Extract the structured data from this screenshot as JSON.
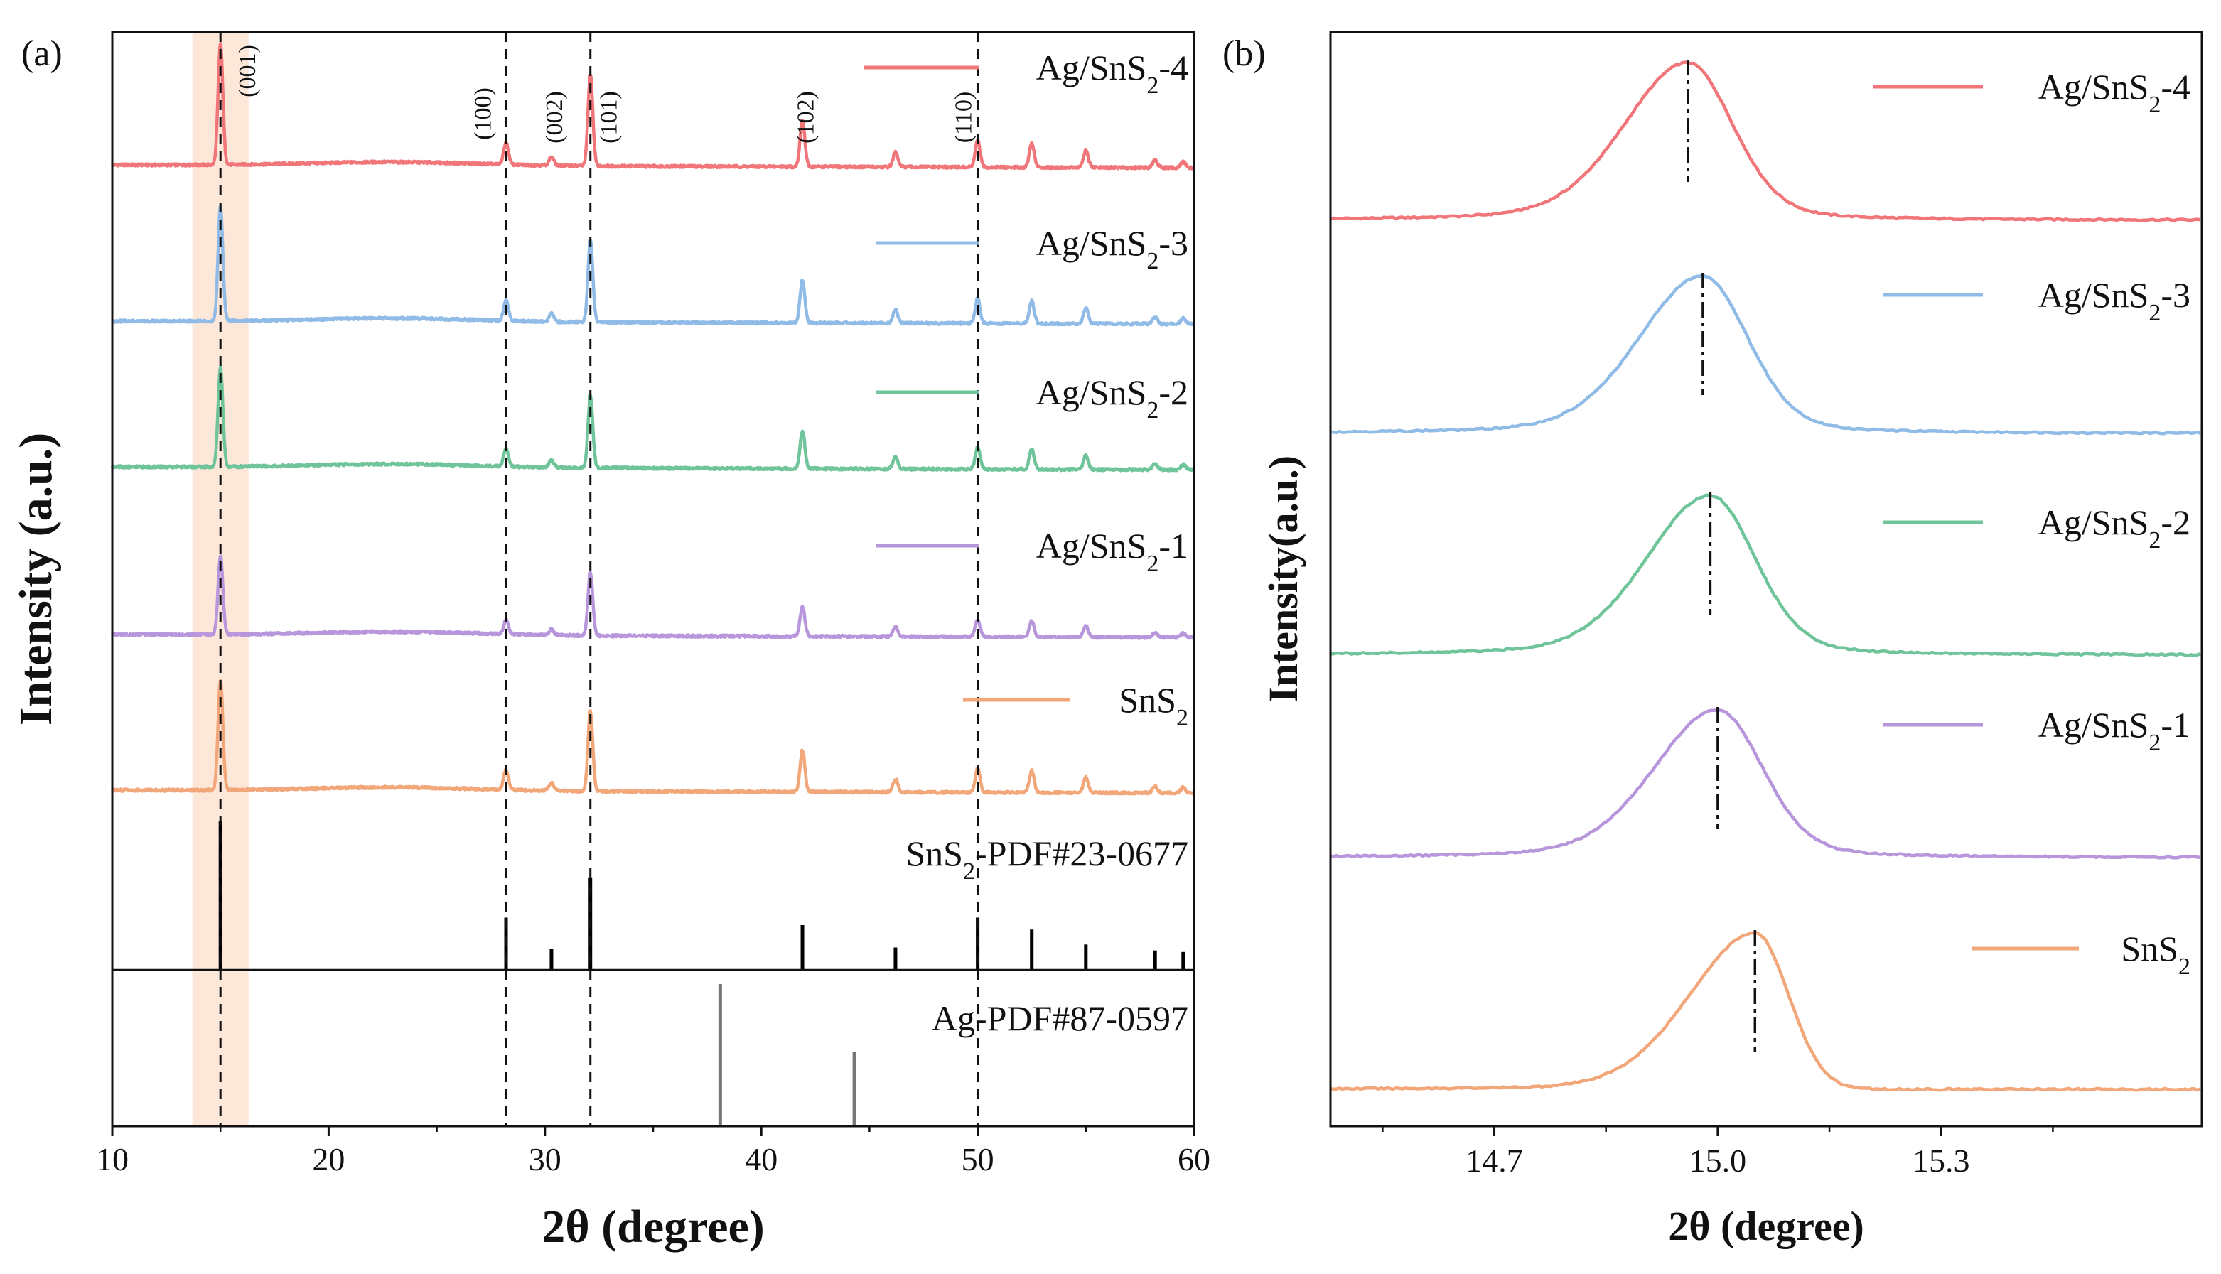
{
  "chart_data": [
    {
      "panel": "(a)",
      "type": "line",
      "xlabel": "2θ (degree)",
      "ylabel": "Intensity (a.u.)",
      "xlim": [
        10,
        60
      ],
      "xticks": [
        10,
        20,
        30,
        40,
        50,
        60
      ],
      "highlight_band": [
        13.7,
        16.3
      ],
      "dashed_guides": [
        15.0,
        28.2,
        32.1,
        50.0
      ],
      "plane_labels": [
        {
          "text": "(001)",
          "x": 16.6
        },
        {
          "text": "(100)",
          "x": 27.5
        },
        {
          "text": "(002)",
          "x": 30.8
        },
        {
          "text": "(101)",
          "x": 33.3
        },
        {
          "text": "(102)",
          "x": 42.4
        },
        {
          "text": "(110)",
          "x": 49.7
        }
      ],
      "peaks": [
        {
          "x": 15.0,
          "h": 1.0
        },
        {
          "x": 28.2,
          "h": 0.18
        },
        {
          "x": 30.3,
          "h": 0.07
        },
        {
          "x": 32.1,
          "h": 0.72
        },
        {
          "x": 41.9,
          "h": 0.38
        },
        {
          "x": 46.2,
          "h": 0.12
        },
        {
          "x": 50.0,
          "h": 0.22
        },
        {
          "x": 52.5,
          "h": 0.2
        },
        {
          "x": 55.0,
          "h": 0.14
        },
        {
          "x": 58.2,
          "h": 0.06
        },
        {
          "x": 59.5,
          "h": 0.05
        }
      ],
      "series": [
        {
          "name": "Ag/SnS₂-4",
          "name_main": "Ag/SnS",
          "name_sub": "2",
          "name_tail": "-4",
          "color": "#f0767a"
        },
        {
          "name": "Ag/SnS₂-3",
          "name_main": "Ag/SnS",
          "name_sub": "2",
          "name_tail": "-3",
          "color": "#8fbbe6"
        },
        {
          "name": "Ag/SnS₂-2",
          "name_main": "Ag/SnS",
          "name_sub": "2",
          "name_tail": "-2",
          "color": "#6fc49a"
        },
        {
          "name": "Ag/SnS₂-1",
          "name_main": "Ag/SnS",
          "name_sub": "2",
          "name_tail": "-1",
          "color": "#b896dc"
        },
        {
          "name": "SnS₂",
          "name_main": "SnS",
          "name_sub": "2",
          "name_tail": "",
          "color": "#f2a77a"
        }
      ],
      "reference_patterns": [
        {
          "label": "SnS₂-PDF#23-0677",
          "label_main": "SnS",
          "label_sub": "2",
          "label_tail": "-PDF#23-0677",
          "color": "#000000",
          "lines": [
            {
              "x": 15.0,
              "h": 1.0
            },
            {
              "x": 28.2,
              "h": 0.35
            },
            {
              "x": 30.3,
              "h": 0.14
            },
            {
              "x": 32.1,
              "h": 0.62
            },
            {
              "x": 41.9,
              "h": 0.3
            },
            {
              "x": 46.2,
              "h": 0.15
            },
            {
              "x": 50.0,
              "h": 0.35
            },
            {
              "x": 52.5,
              "h": 0.27
            },
            {
              "x": 55.0,
              "h": 0.17
            },
            {
              "x": 58.2,
              "h": 0.13
            },
            {
              "x": 59.5,
              "h": 0.12
            }
          ]
        },
        {
          "label": "Ag-PDF#87-0597",
          "label_main": "Ag-PDF#87-0597",
          "label_sub": "",
          "label_tail": "",
          "color": "#777777",
          "lines": [
            {
              "x": 38.1,
              "h": 1.0
            },
            {
              "x": 44.3,
              "h": 0.52
            }
          ]
        }
      ]
    },
    {
      "panel": "(b)",
      "type": "line",
      "xlabel": "2θ (degree)",
      "ylabel": "Intensity(a.u.)",
      "xlim": [
        14.48,
        15.65
      ],
      "xticks": [
        14.7,
        15.0,
        15.3
      ],
      "xtick_labels": [
        "14.7",
        "15.0",
        "15.3"
      ],
      "series": [
        {
          "name": "Ag/SnS₂-4",
          "name_main": "Ag/SnS",
          "name_sub": "2",
          "name_tail": "-4",
          "color": "#f0767a",
          "peak_2theta": 14.96
        },
        {
          "name": "Ag/SnS₂-3",
          "name_main": "Ag/SnS",
          "name_sub": "2",
          "name_tail": "-3",
          "color": "#8fbbe6",
          "peak_2theta": 14.98
        },
        {
          "name": "Ag/SnS₂-2",
          "name_main": "Ag/SnS",
          "name_sub": "2",
          "name_tail": "-2",
          "color": "#6fc49a",
          "peak_2theta": 14.99
        },
        {
          "name": "Ag/SnS₂-1",
          "name_main": "Ag/SnS",
          "name_sub": "2",
          "name_tail": "-1",
          "color": "#b896dc",
          "peak_2theta": 15.0
        },
        {
          "name": "SnS₂",
          "name_main": "SnS",
          "name_sub": "2",
          "name_tail": "",
          "color": "#f2a77a",
          "peak_2theta": 15.05
        }
      ]
    }
  ]
}
